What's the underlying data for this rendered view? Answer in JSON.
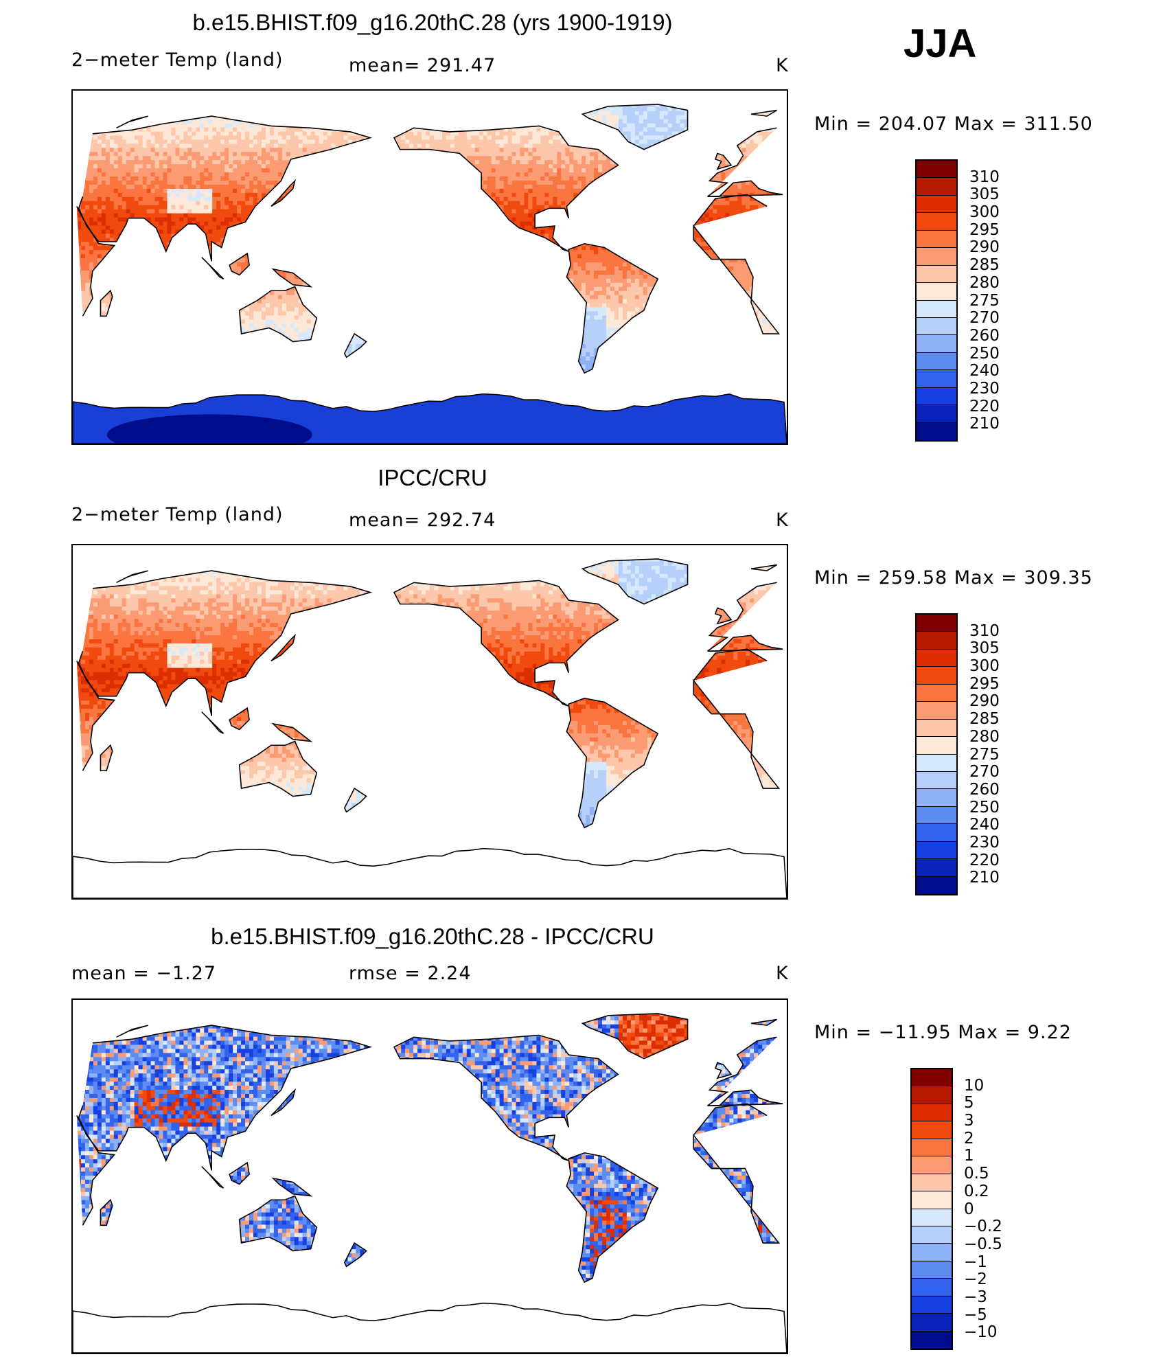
{
  "season": "JJA",
  "units": "K",
  "panels": [
    {
      "title": "b.e15.BHIST.f09_g16.20thC.28 (yrs 1900-1919)",
      "left_label": "2−meter Temp (land)",
      "mid_label": "mean=  291.47",
      "units": "K",
      "minmax": "Min  =  204.07  Max  =  311.50",
      "scale": "abs",
      "antarctica": true
    },
    {
      "title": "IPCC/CRU",
      "left_label": "2−meter Temp (land)",
      "mid_label": "mean=  292.74",
      "units": "K",
      "minmax": "Min  =  259.58  Max  =  309.35",
      "scale": "abs",
      "antarctica": false
    },
    {
      "title": "b.e15.BHIST.f09_g16.20thC.28 - IPCC/CRU",
      "left_label": "mean  =    −1.27",
      "mid_label": "rmse  =      2.24",
      "units": "K",
      "minmax": "Min  =  −11.95  Max  =      9.22",
      "scale": "diff",
      "antarctica": false
    }
  ],
  "colorbars": {
    "abs": {
      "ticks": [
        "310",
        "305",
        "300",
        "295",
        "290",
        "285",
        "280",
        "275",
        "270",
        "260",
        "250",
        "240",
        "230",
        "220",
        "210"
      ],
      "colors": [
        "#7f0000",
        "#b51a00",
        "#dc2e00",
        "#f04a0f",
        "#fa7540",
        "#fb9b73",
        "#fcc7aa",
        "#fde8d8",
        "#d6e8fb",
        "#b6d0f9",
        "#8fb2f6",
        "#5f8cf1",
        "#3163ec",
        "#1641e0",
        "#0a22b8",
        "#000d8a"
      ]
    },
    "diff": {
      "ticks": [
        "10",
        "5",
        "3",
        "2",
        "1",
        "0.5",
        "0.2",
        "0",
        "−0.2",
        "−0.5",
        "−1",
        "−2",
        "−3",
        "−5",
        "−10"
      ],
      "colors": [
        "#7f0000",
        "#b51a00",
        "#dc2e00",
        "#f04a0f",
        "#fa7540",
        "#fb9b73",
        "#fcc7aa",
        "#fde8d8",
        "#d6e8fb",
        "#b6d0f9",
        "#8fb2f6",
        "#5f8cf1",
        "#3163ec",
        "#1641e0",
        "#0a22b8",
        "#000d8a"
      ]
    }
  }
}
